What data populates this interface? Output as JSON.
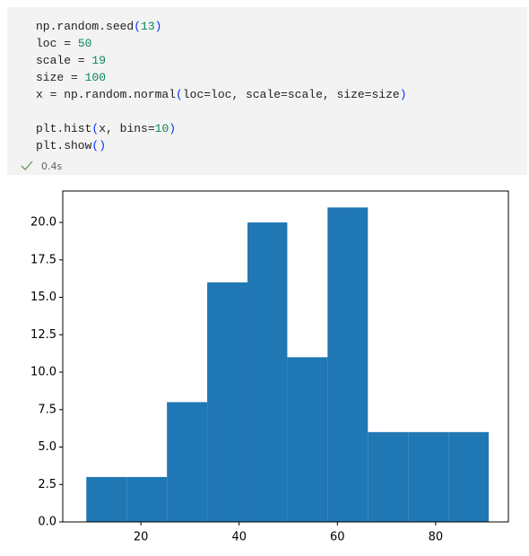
{
  "cell": {
    "code": [
      [
        "np.random.seed(13)",
        "loc = 50",
        "scale = 19",
        "size = 100",
        "x = np.random.normal(loc=loc, scale=scale, size=size)"
      ],
      [
        "plt.hist(x, bins=10)",
        "plt.show()"
      ]
    ],
    "status": "0.4s"
  },
  "chart_data": {
    "type": "histogram",
    "bins": [
      8.9,
      17.1,
      25.3,
      33.5,
      41.7,
      49.8,
      58.0,
      66.2,
      74.4,
      82.6,
      90.8
    ],
    "values": [
      3,
      3,
      8,
      16,
      20,
      11,
      21,
      6,
      6,
      6
    ],
    "color": "#1f77b4",
    "xlim": [
      4.1,
      94.8
    ],
    "xticks": [
      20,
      40,
      60,
      80
    ],
    "ylim": [
      0,
      22.1
    ],
    "yticks": [
      {
        "value": 0,
        "label": "0.0"
      },
      2.5,
      {
        "value": 5,
        "label": "5.0"
      },
      7.5,
      {
        "value": 10,
        "label": "10.0"
      },
      12.5,
      {
        "value": 15,
        "label": "15.0"
      },
      17.5,
      {
        "value": 20,
        "label": "20.0"
      }
    ],
    "grid": false
  }
}
